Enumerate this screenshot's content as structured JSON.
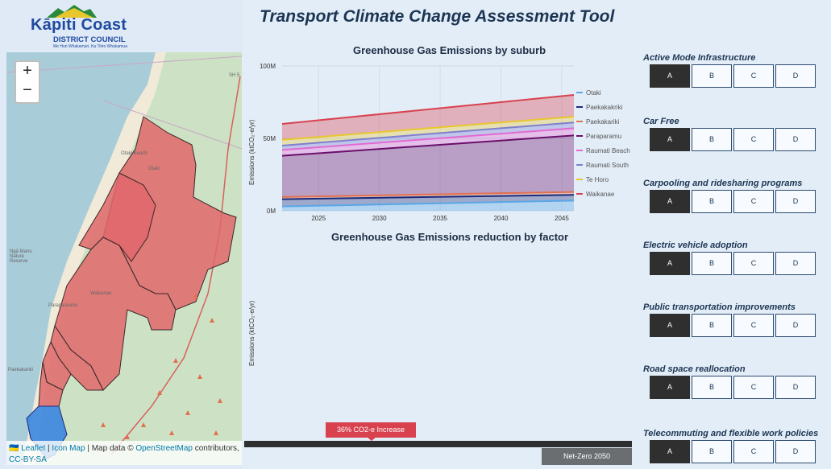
{
  "header": {
    "logo_name": "Kāpiti Coast",
    "logo_sub": "DISTRICT COUNCIL",
    "logo_tagline": "Me Huri Whakamuri, Ka Titiro Whakamua",
    "app_title": "Transport Climate Change Assessment Tool"
  },
  "map": {
    "zoom_in": "+",
    "zoom_out": "−",
    "place_labels": [
      "Otaki Beach",
      "Otaki",
      "Waikanae",
      "Paraparaumu",
      "Paekakariki",
      "Ngā Manu Nature Reserve",
      "SH 5"
    ],
    "attribution": {
      "flag": "🇺🇦",
      "leaflet": "Leaflet",
      "sep1": " | ",
      "icon_map": "Icon Map",
      "sep2": " | Map data © ",
      "osm": "OpenStreetMap",
      "contributors": " contributors, ",
      "license": "CC-BY-SA"
    },
    "colors": {
      "sea": "#a9ccd9",
      "land": "#cde2c4",
      "region": "#e0676b",
      "selected_region": "#3b86e0"
    }
  },
  "chart1": {
    "title": "Greenhouse Gas Emissions by suburb",
    "ylabel": "Emissions (ktCO₂-e/yr)"
  },
  "chart2": {
    "title": "Greenhouse Gas Emissions reduction by factor",
    "ylabel": "Emissions (ktCO₂-e/yr)"
  },
  "chart_data": [
    {
      "type": "area",
      "title": "Greenhouse Gas Emissions by suburb",
      "ylabel": "Emissions (ktCO₂-e/yr)",
      "xlim": [
        2022,
        2046
      ],
      "ylim": [
        0,
        100000000
      ],
      "x_ticks": [
        2025,
        2030,
        2035,
        2040,
        2045
      ],
      "y_ticks": [
        0,
        50000000,
        100000000
      ],
      "y_tick_labels": [
        "0M",
        "50M",
        "100M"
      ],
      "grid": true,
      "legend_position": "right",
      "x": [
        2022,
        2046
      ],
      "series": [
        {
          "name": "Otaki",
          "color": "#5aa7e6",
          "values": [
            3000000,
            7000000
          ]
        },
        {
          "name": "Paekakakriki",
          "color": "#1d2a7a",
          "values": [
            8000000,
            11000000
          ]
        },
        {
          "name": "Paekakariki",
          "color": "#e07050",
          "values": [
            9500000,
            13000000
          ]
        },
        {
          "name": "Paraparamu",
          "color": "#6a0f6a",
          "values": [
            38000000,
            52000000
          ]
        },
        {
          "name": "Raumati Beach",
          "color": "#e26ad2",
          "values": [
            42000000,
            57000000
          ]
        },
        {
          "name": "Raumati South",
          "color": "#7f7fcf",
          "values": [
            45000000,
            61000000
          ]
        },
        {
          "name": "Te Horo",
          "color": "#e8c62e",
          "values": [
            49000000,
            65000000
          ]
        },
        {
          "name": "Waikanae",
          "color": "#d9414f",
          "values": [
            60000000,
            80000000
          ]
        }
      ]
    }
  ],
  "progress": {
    "increase_label": "36% CO2-e Increase",
    "netzero_label": "Net-Zero 2050"
  },
  "factors": [
    {
      "title": "Active Mode Infrastructure",
      "options": [
        "A",
        "B",
        "C",
        "D"
      ],
      "selected": "A"
    },
    {
      "title": "Car Free",
      "options": [
        "A",
        "B",
        "C",
        "D"
      ],
      "selected": "A"
    },
    {
      "title": "Carpooling and ridesharing programs",
      "options": [
        "A",
        "B",
        "C",
        "D"
      ],
      "selected": "A"
    },
    {
      "title": "Electric vehicle adoption",
      "options": [
        "A",
        "B",
        "C",
        "D"
      ],
      "selected": "A"
    },
    {
      "title": "Public transportation improvements",
      "options": [
        "A",
        "B",
        "C",
        "D"
      ],
      "selected": "A"
    },
    {
      "title": "Road space reallocation",
      "options": [
        "A",
        "B",
        "C",
        "D"
      ],
      "selected": "A"
    },
    {
      "title": "Telecommuting and flexible work policies",
      "options": [
        "A",
        "B",
        "C",
        "D"
      ],
      "selected": "A"
    }
  ]
}
